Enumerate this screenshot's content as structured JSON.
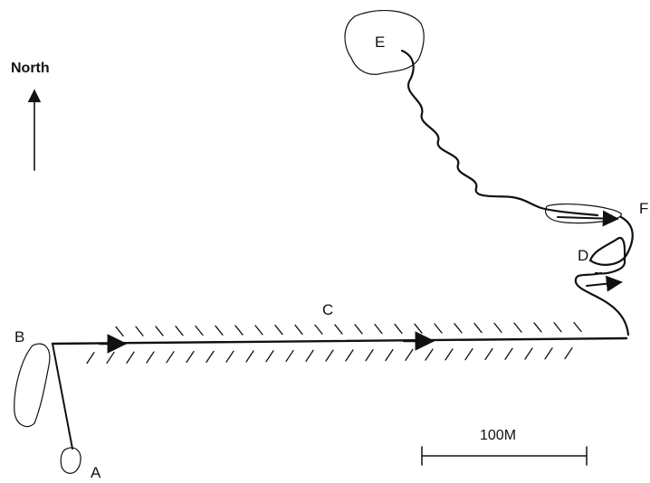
{
  "compass": {
    "label": "North"
  },
  "points": {
    "a": "A",
    "b": "B",
    "c": "C",
    "d": "D",
    "e": "E",
    "f": "F"
  },
  "scale_bar": {
    "label": "100M"
  },
  "colors": {
    "ink": "#111111",
    "background": "#ffffff"
  }
}
